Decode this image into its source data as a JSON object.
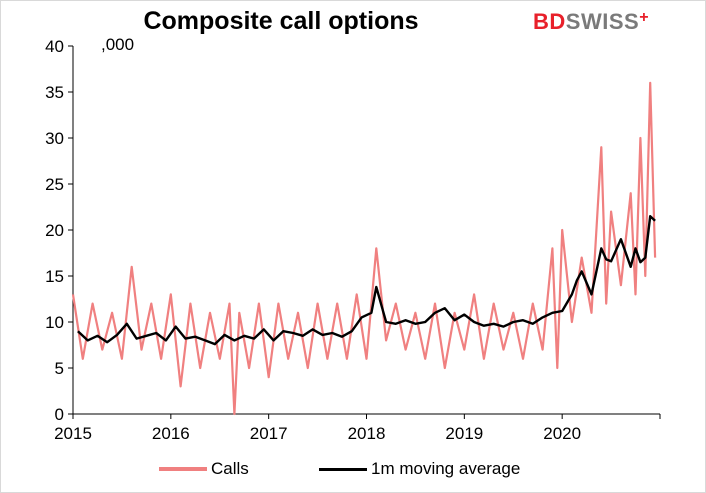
{
  "chart_data": {
    "type": "line",
    "title": "Composite call options",
    "unit_label": ",000",
    "xlabel": "",
    "ylabel": "",
    "ylim": [
      0,
      40
    ],
    "yticks": [
      "0",
      "5",
      "10",
      "15",
      "20",
      "25",
      "30",
      "35",
      "40"
    ],
    "xlim": [
      2015,
      2021
    ],
    "xticks": [
      "2015",
      "2016",
      "2017",
      "2018",
      "2019",
      "2020"
    ],
    "grid": false,
    "legend_position": "bottom",
    "series": [
      {
        "name": "Calls",
        "color": "#f08080",
        "x": [
          2015.0,
          2015.1,
          2015.2,
          2015.3,
          2015.4,
          2015.5,
          2015.6,
          2015.7,
          2015.8,
          2015.9,
          2016.0,
          2016.1,
          2016.2,
          2016.3,
          2016.4,
          2016.5,
          2016.6,
          2016.65,
          2016.7,
          2016.8,
          2016.9,
          2017.0,
          2017.1,
          2017.2,
          2017.3,
          2017.4,
          2017.5,
          2017.6,
          2017.7,
          2017.8,
          2017.9,
          2018.0,
          2018.1,
          2018.2,
          2018.3,
          2018.4,
          2018.5,
          2018.6,
          2018.7,
          2018.8,
          2018.9,
          2019.0,
          2019.1,
          2019.2,
          2019.3,
          2019.4,
          2019.5,
          2019.6,
          2019.7,
          2019.8,
          2019.9,
          2019.95,
          2020.0,
          2020.1,
          2020.2,
          2020.3,
          2020.4,
          2020.45,
          2020.5,
          2020.6,
          2020.7,
          2020.75,
          2020.8,
          2020.85,
          2020.9,
          2020.95
        ],
        "y": [
          13,
          6,
          12,
          7,
          11,
          6,
          16,
          7,
          12,
          6,
          13,
          3,
          12,
          5,
          11,
          6,
          12,
          0,
          11,
          5,
          12,
          4,
          12,
          6,
          11,
          5,
          12,
          6,
          12,
          6,
          13,
          6,
          18,
          8,
          12,
          7,
          11,
          6,
          12,
          5,
          11,
          7,
          13,
          6,
          12,
          7,
          11,
          6,
          12,
          7,
          18,
          5,
          20,
          10,
          17,
          11,
          29,
          12,
          22,
          14,
          24,
          13,
          30,
          15,
          36,
          17
        ]
      },
      {
        "name": "1m moving average",
        "color": "#000000",
        "x": [
          2015.05,
          2015.15,
          2015.25,
          2015.35,
          2015.45,
          2015.55,
          2015.65,
          2015.75,
          2015.85,
          2015.95,
          2016.05,
          2016.15,
          2016.25,
          2016.35,
          2016.45,
          2016.55,
          2016.65,
          2016.75,
          2016.85,
          2016.95,
          2017.05,
          2017.15,
          2017.25,
          2017.35,
          2017.45,
          2017.55,
          2017.65,
          2017.75,
          2017.85,
          2017.95,
          2018.05,
          2018.1,
          2018.2,
          2018.3,
          2018.4,
          2018.5,
          2018.6,
          2018.7,
          2018.8,
          2018.9,
          2019.0,
          2019.1,
          2019.2,
          2019.3,
          2019.4,
          2019.5,
          2019.6,
          2019.7,
          2019.8,
          2019.9,
          2020.0,
          2020.1,
          2020.15,
          2020.2,
          2020.3,
          2020.4,
          2020.45,
          2020.5,
          2020.6,
          2020.7,
          2020.75,
          2020.8,
          2020.85,
          2020.9,
          2020.95
        ],
        "y": [
          9.0,
          8.0,
          8.5,
          7.8,
          8.6,
          9.8,
          8.2,
          8.5,
          8.8,
          8.0,
          9.5,
          8.2,
          8.4,
          8.0,
          7.6,
          8.6,
          8.0,
          8.5,
          8.2,
          9.2,
          8.0,
          9.0,
          8.8,
          8.5,
          9.2,
          8.6,
          8.8,
          8.4,
          9.0,
          10.5,
          11.0,
          13.8,
          10.0,
          9.8,
          10.2,
          9.8,
          10.0,
          11.0,
          11.5,
          10.2,
          10.8,
          10.0,
          9.6,
          9.8,
          9.5,
          10.0,
          10.2,
          9.8,
          10.5,
          11.0,
          11.2,
          13.0,
          14.5,
          15.5,
          13.0,
          18.0,
          16.8,
          16.6,
          19.0,
          16.0,
          18.0,
          16.5,
          17.0,
          21.5,
          21.0
        ]
      }
    ]
  },
  "logo": {
    "bd": "BD",
    "swiss": "SWISS",
    "plus": "+"
  },
  "legend": [
    {
      "label": "Calls",
      "color": "#f08080"
    },
    {
      "label": "1m moving average",
      "color": "#000000"
    }
  ]
}
